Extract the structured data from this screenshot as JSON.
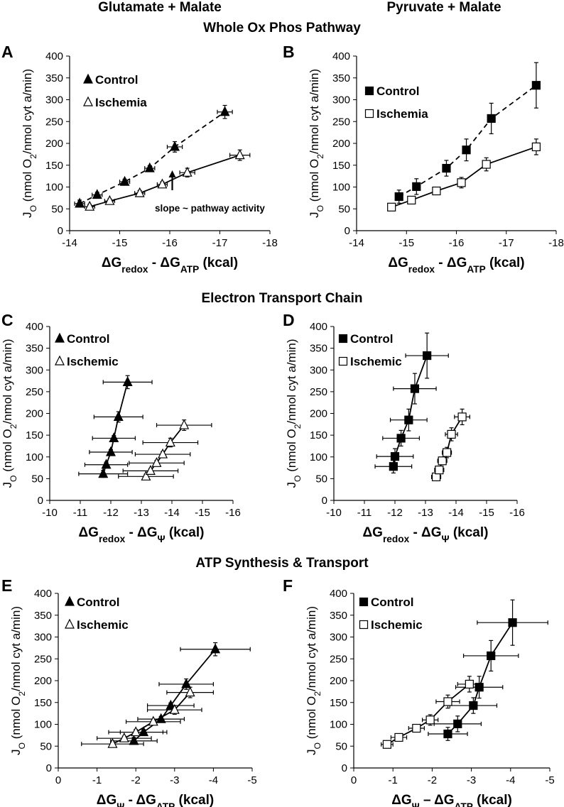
{
  "headings": {
    "col_left": "Glutamate + Malate",
    "col_right": "Pyruvate + Malate",
    "row1": "Whole Ox Phos Pathway",
    "row2": "Electron Transport Chain",
    "row3": "ATP Synthesis & Transport"
  },
  "colors": {
    "ink": "#000000",
    "open_fill": "#ffffff"
  },
  "chart_data": [
    {
      "panel": "A",
      "type": "scatter",
      "ylabel": "JO (nmol O2/nmol cyt a/min)",
      "xlabel": "ΔGredox - ΔGATP (kcal)",
      "xlim": [
        -14,
        -18
      ],
      "ylim": [
        0,
        400
      ],
      "xticks": [
        -14,
        -15,
        -16,
        -17,
        -18
      ],
      "yticks": [
        0,
        50,
        100,
        150,
        200,
        250,
        300,
        350,
        400
      ],
      "legend_position": "top-left",
      "annotation": "slope ~ pathway activity",
      "series": [
        {
          "name": "Control",
          "marker": "triangle",
          "filled": true,
          "line": "dashed",
          "x": [
            -14.2,
            -14.55,
            -15.1,
            -15.6,
            -16.1,
            -17.1
          ],
          "y": [
            62,
            82,
            112,
            143,
            192,
            272
          ],
          "xerr": [
            0.1,
            0.1,
            0.1,
            0.1,
            0.15,
            0.15
          ],
          "yerr": [
            8,
            6,
            6,
            6,
            12,
            15
          ]
        },
        {
          "name": "Ischemia",
          "marker": "triangle",
          "filled": false,
          "line": "solid",
          "x": [
            -14.4,
            -14.8,
            -15.4,
            -15.85,
            -16.35,
            -17.4
          ],
          "y": [
            55,
            68,
            86,
            106,
            133,
            173
          ],
          "xerr": [
            0.1,
            0.1,
            0.1,
            0.1,
            0.15,
            0.2
          ],
          "yerr": [
            5,
            5,
            6,
            6,
            10,
            12
          ]
        }
      ]
    },
    {
      "panel": "B",
      "type": "scatter",
      "ylabel": "JO (nmol O2/nmol cyt a/min)",
      "xlabel": "ΔGredox - ΔGATP (kcal)",
      "xlim": [
        -14,
        -18
      ],
      "ylim": [
        0,
        400
      ],
      "xticks": [
        -14,
        -15,
        -16,
        -17,
        -18
      ],
      "yticks": [
        0,
        50,
        100,
        150,
        200,
        250,
        300,
        350,
        400
      ],
      "legend_position": "top-left",
      "series": [
        {
          "name": "Control",
          "marker": "square",
          "filled": true,
          "line": "dashed",
          "x": [
            -14.85,
            -15.2,
            -15.8,
            -16.2,
            -16.7,
            -17.6
          ],
          "y": [
            78,
            101,
            143,
            185,
            257,
            333
          ],
          "xerr": [
            0.05,
            0.05,
            0.05,
            0.05,
            0.05,
            0.05
          ],
          "yerr": [
            15,
            18,
            18,
            25,
            35,
            52
          ]
        },
        {
          "name": "Ischemia",
          "marker": "square",
          "filled": false,
          "line": "solid",
          "x": [
            -14.7,
            -15.1,
            -15.6,
            -16.1,
            -16.6,
            -17.6
          ],
          "y": [
            54,
            70,
            91,
            110,
            152,
            192
          ],
          "xerr": [
            0.05,
            0.05,
            0.05,
            0.05,
            0.05,
            0.05
          ],
          "yerr": [
            5,
            5,
            8,
            12,
            15,
            18
          ]
        }
      ]
    },
    {
      "panel": "C",
      "type": "scatter",
      "ylabel": "JO (nmol O2/nmol cyt a/min)",
      "xlabel": "ΔGredox - ΔGΨ (kcal)",
      "xlim": [
        -10,
        -16
      ],
      "ylim": [
        0,
        400
      ],
      "xticks": [
        -10,
        -11,
        -12,
        -13,
        -14,
        -15,
        -16
      ],
      "yticks": [
        0,
        50,
        100,
        150,
        200,
        250,
        300,
        350,
        400
      ],
      "legend_position": "top-left",
      "series": [
        {
          "name": "Control",
          "marker": "triangle",
          "filled": true,
          "line": "solid",
          "x": [
            -11.75,
            -11.85,
            -12.0,
            -12.1,
            -12.25,
            -12.55
          ],
          "y": [
            61,
            82,
            111,
            143,
            192,
            272
          ],
          "xerr": [
            0.8,
            0.7,
            0.7,
            0.7,
            0.8,
            0.8
          ],
          "yerr": [
            8,
            6,
            6,
            6,
            12,
            15
          ]
        },
        {
          "name": "Ischemic",
          "marker": "triangle",
          "filled": false,
          "line": "solid",
          "x": [
            -13.15,
            -13.3,
            -13.5,
            -13.7,
            -13.95,
            -14.4
          ],
          "y": [
            55,
            68,
            86,
            106,
            133,
            173
          ],
          "xerr": [
            0.9,
            0.9,
            0.9,
            0.9,
            0.9,
            0.9
          ],
          "yerr": [
            5,
            5,
            6,
            6,
            10,
            12
          ]
        }
      ]
    },
    {
      "panel": "D",
      "type": "scatter",
      "ylabel": "JO (nmol O2/nmol cyt a/min)",
      "xlabel": "ΔGredox - ΔGΨ (kcal)",
      "xlim": [
        -10,
        -16
      ],
      "ylim": [
        0,
        400
      ],
      "xticks": [
        -10,
        -11,
        -12,
        -13,
        -14,
        -15,
        -16
      ],
      "yticks": [
        0,
        50,
        100,
        150,
        200,
        250,
        300,
        350,
        400
      ],
      "legend_position": "top-left",
      "series": [
        {
          "name": "Control",
          "marker": "square",
          "filled": true,
          "line": "solid",
          "x": [
            -11.95,
            -12.0,
            -12.2,
            -12.45,
            -12.65,
            -13.05
          ],
          "y": [
            78,
            101,
            143,
            185,
            257,
            333
          ],
          "xerr": [
            0.6,
            0.6,
            0.6,
            0.6,
            0.7,
            0.7
          ],
          "yerr": [
            15,
            18,
            18,
            25,
            35,
            52
          ]
        },
        {
          "name": "Ischemic",
          "marker": "square",
          "filled": false,
          "line": "solid",
          "x": [
            -13.35,
            -13.45,
            -13.55,
            -13.7,
            -13.85,
            -14.2
          ],
          "y": [
            54,
            70,
            91,
            110,
            152,
            192
          ],
          "xerr": [
            0.15,
            0.15,
            0.15,
            0.15,
            0.2,
            0.25
          ],
          "yerr": [
            5,
            5,
            8,
            12,
            15,
            18
          ]
        }
      ]
    },
    {
      "panel": "E",
      "type": "scatter",
      "ylabel": "JO (nmol O2/nmol cyt a/min)",
      "xlabel": "ΔGΨ - ΔGATP (kcal)",
      "xlim": [
        0,
        -5
      ],
      "ylim": [
        0,
        400
      ],
      "xticks": [
        0,
        -1,
        -2,
        -3,
        -4,
        -5
      ],
      "yticks": [
        0,
        50,
        100,
        150,
        200,
        250,
        300,
        350,
        400
      ],
      "legend_position": "top-left",
      "series": [
        {
          "name": "Control",
          "marker": "triangle",
          "filled": true,
          "line": "solid",
          "x": [
            -1.95,
            -2.2,
            -2.65,
            -2.9,
            -3.3,
            -4.05
          ],
          "y": [
            62,
            82,
            112,
            143,
            192,
            272
          ],
          "xerr": [
            0.6,
            0.6,
            0.6,
            0.6,
            0.7,
            0.9
          ],
          "yerr": [
            8,
            6,
            6,
            6,
            12,
            15
          ]
        },
        {
          "name": "Ischemic",
          "marker": "triangle",
          "filled": false,
          "line": "solid",
          "x": [
            -1.4,
            -1.7,
            -2.0,
            -2.45,
            -3.0,
            -3.4
          ],
          "y": [
            55,
            68,
            82,
            106,
            133,
            173
          ],
          "xerr": [
            0.8,
            0.7,
            0.7,
            0.7,
            0.7,
            0.6
          ],
          "yerr": [
            5,
            5,
            6,
            6,
            10,
            12
          ]
        }
      ]
    },
    {
      "panel": "F",
      "type": "scatter",
      "ylabel": "JO (nmol O2/nmol cyt a/min)",
      "xlabel": "ΔGΨ – ΔGATP (kcal)",
      "xlim": [
        0,
        -5
      ],
      "ylim": [
        0,
        400
      ],
      "xticks": [
        0,
        -1,
        -2,
        -3,
        -4,
        -5
      ],
      "yticks": [
        0,
        50,
        100,
        150,
        200,
        250,
        300,
        350,
        400
      ],
      "legend_position": "top-left",
      "series": [
        {
          "name": "Control",
          "marker": "square",
          "filled": true,
          "line": "solid",
          "x": [
            -2.4,
            -2.65,
            -3.05,
            -3.2,
            -3.5,
            -4.05
          ],
          "y": [
            78,
            101,
            143,
            185,
            257,
            333
          ],
          "xerr": [
            0.5,
            0.6,
            0.6,
            0.6,
            0.7,
            0.9
          ],
          "yerr": [
            15,
            18,
            18,
            25,
            35,
            52
          ]
        },
        {
          "name": "Ischemic",
          "marker": "square",
          "filled": false,
          "line": "solid",
          "x": [
            -0.85,
            -1.15,
            -1.6,
            -1.95,
            -2.4,
            -2.95
          ],
          "y": [
            54,
            70,
            91,
            110,
            152,
            192
          ],
          "xerr": [
            0.15,
            0.2,
            0.2,
            0.2,
            0.3,
            0.3
          ],
          "yerr": [
            5,
            5,
            8,
            12,
            15,
            18
          ]
        }
      ]
    }
  ]
}
